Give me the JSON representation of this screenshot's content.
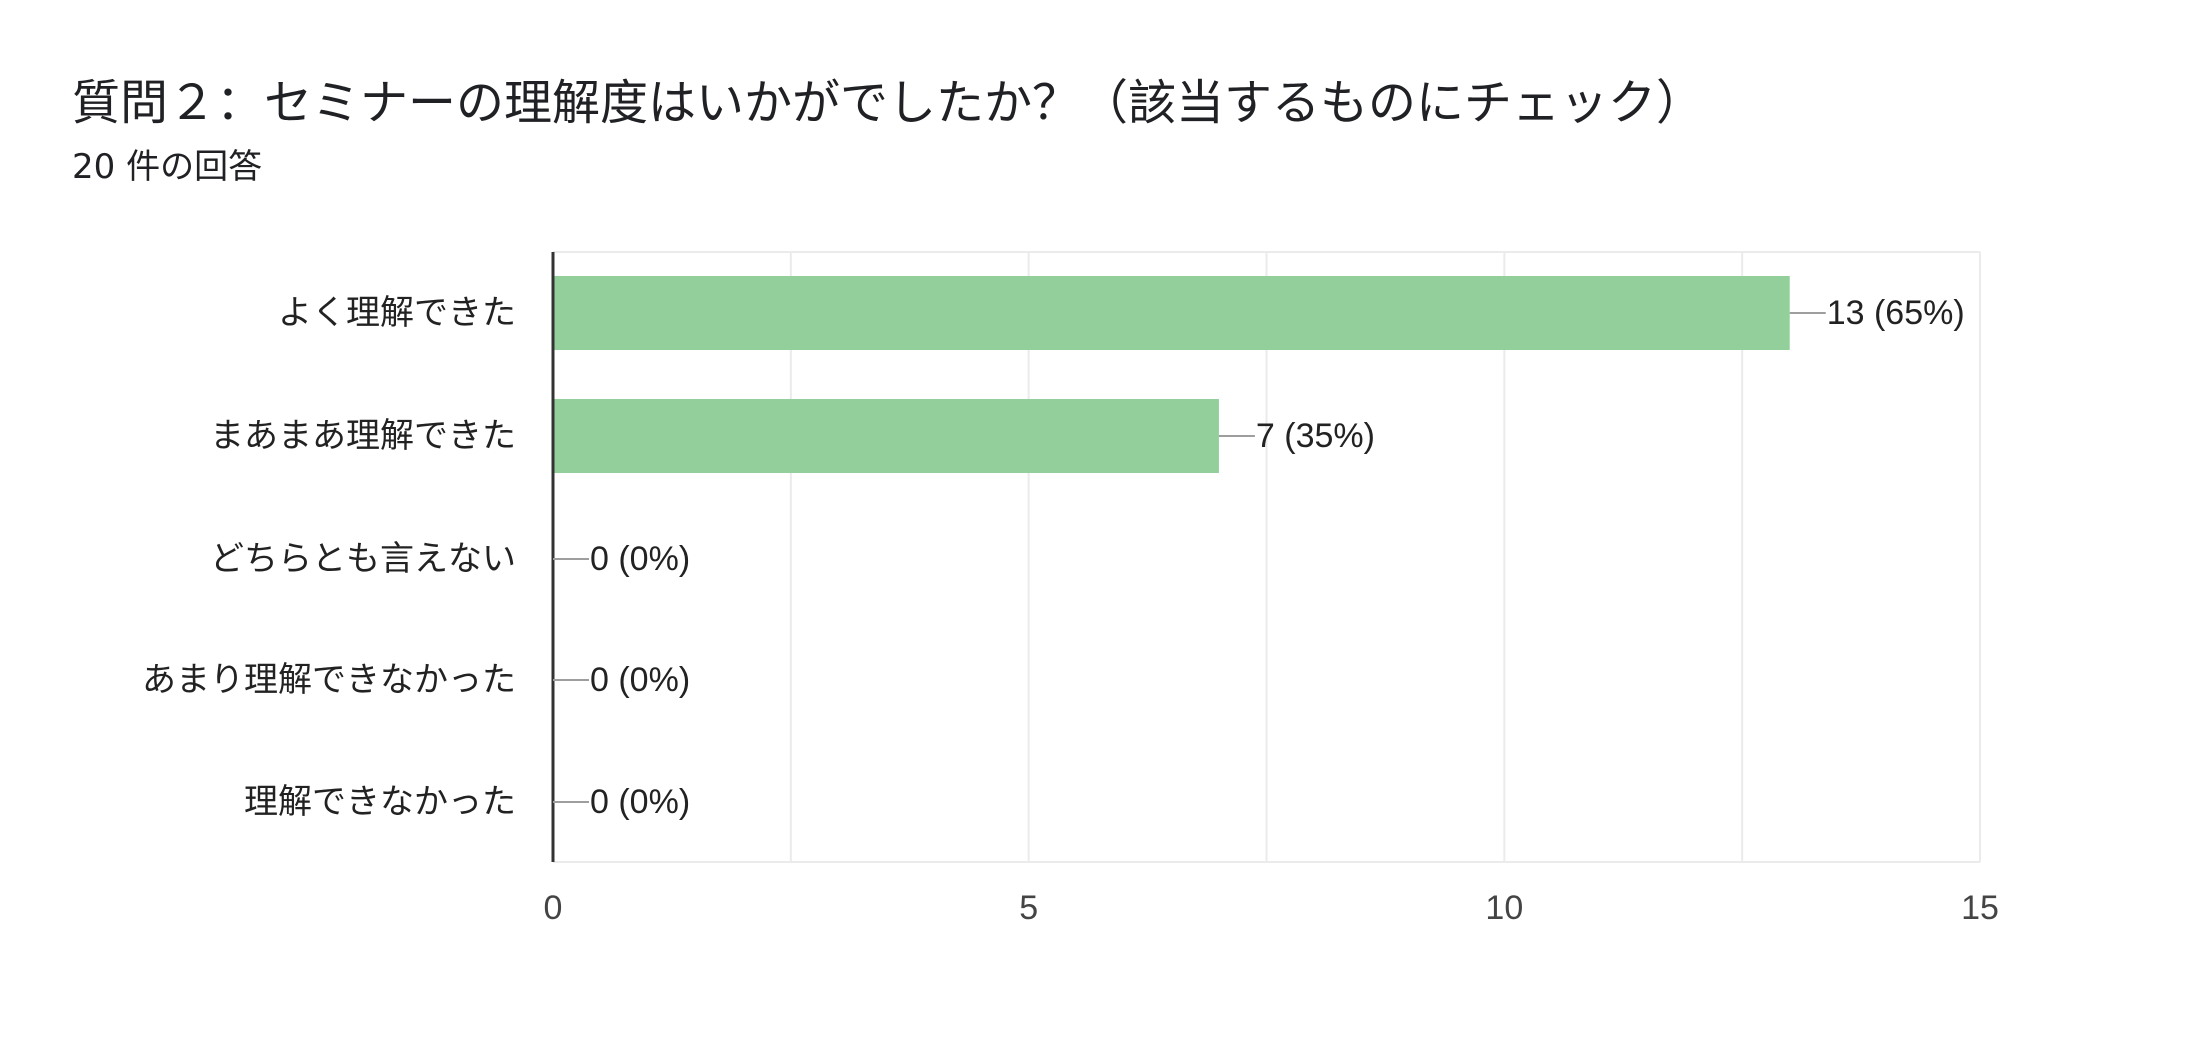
{
  "question": {
    "title": "質問２：セミナーの理解度はいかがでしたか？（該当するものにチェック）",
    "response_count": "20 件の回答"
  },
  "chart_data": {
    "type": "bar",
    "orientation": "horizontal",
    "categories": [
      "よく理解できた",
      "まあまあ理解できた",
      "どちらとも言えない",
      "あまり理解できなかった",
      "理解できなかった"
    ],
    "values": [
      13,
      7,
      0,
      0,
      0
    ],
    "data_labels": [
      "13 (65%)",
      "7 (35%)",
      "0 (0%)",
      "0 (0%)",
      "0 (0%)"
    ],
    "xlim": [
      0,
      15
    ],
    "xticks": [
      0,
      5,
      10,
      15
    ],
    "grid": true,
    "bar_color": "#93cf9b"
  }
}
